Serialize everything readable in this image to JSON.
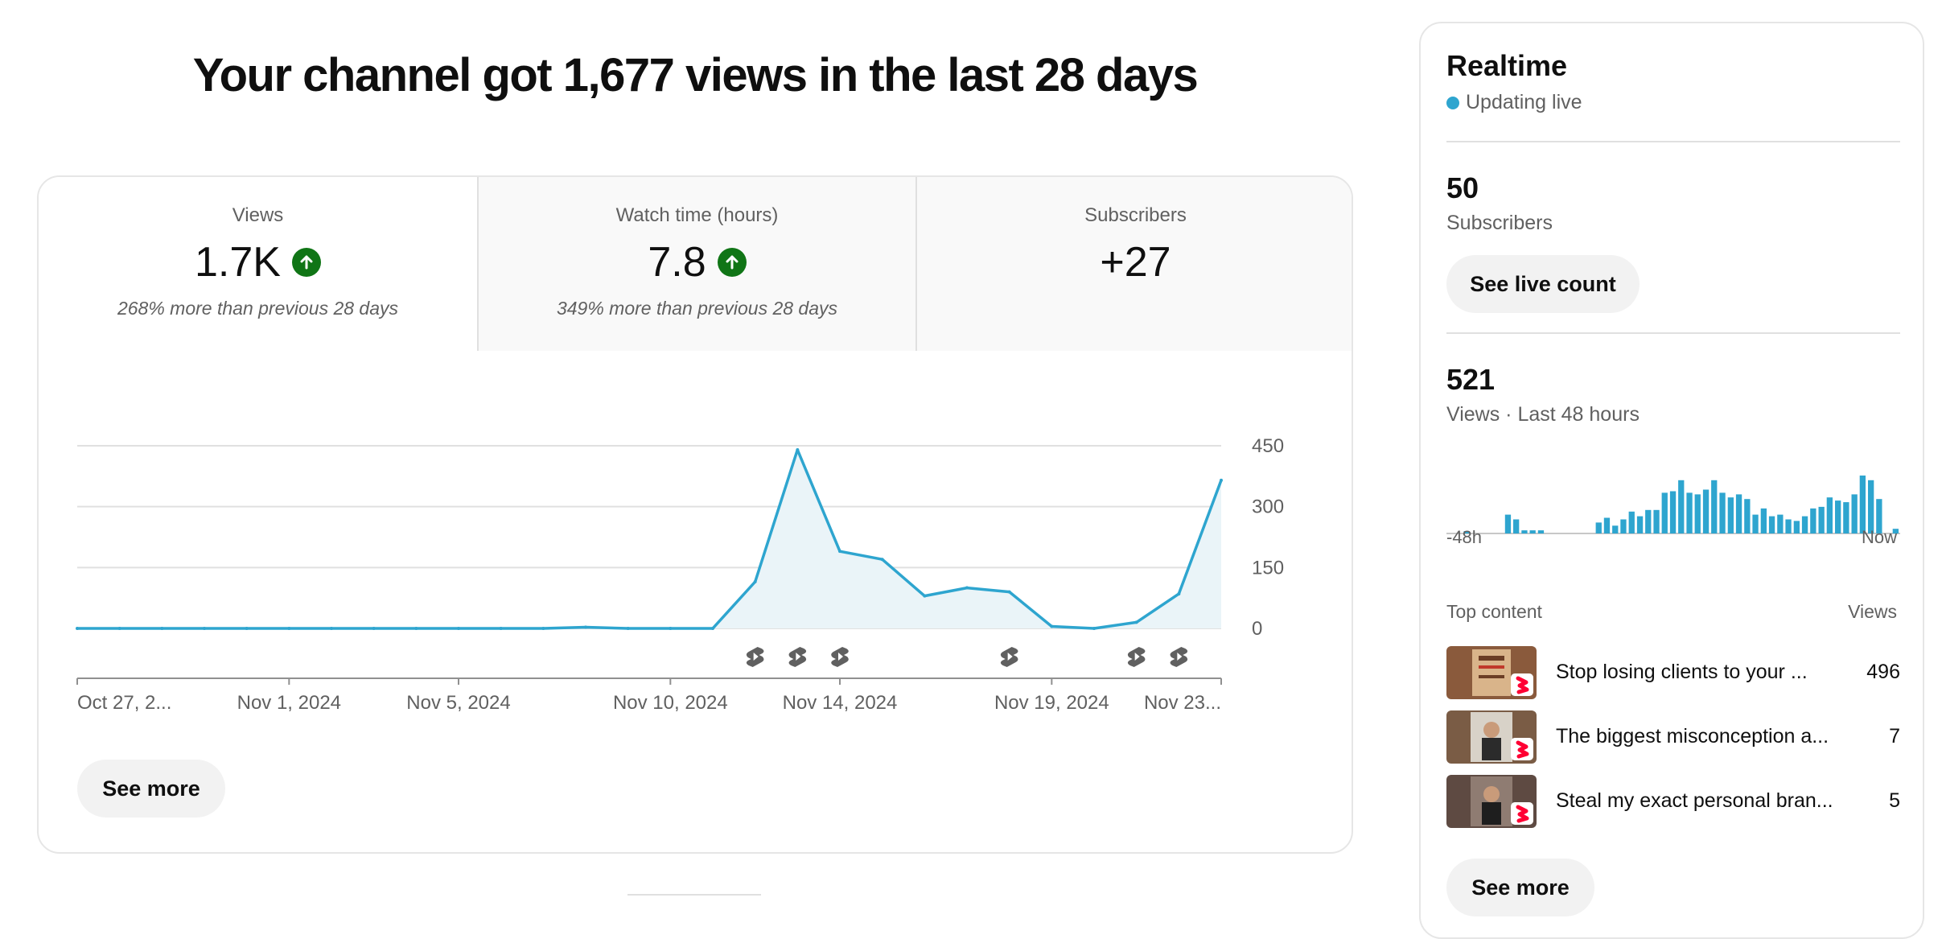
{
  "headline": "Your channel got 1,677 views in the last 28 days",
  "tabs": [
    {
      "label": "Views",
      "value": "1.7K",
      "trend": "up",
      "note": "268% more than previous 28 days"
    },
    {
      "label": "Watch time (hours)",
      "value": "7.8",
      "trend": "up",
      "note": "349% more than previous 28 days"
    },
    {
      "label": "Subscribers",
      "value": "+27",
      "note": ""
    }
  ],
  "chart_data": {
    "type": "area",
    "series": [
      {
        "values": [
          0,
          0,
          0,
          0,
          0,
          0,
          0,
          0,
          0,
          0,
          0,
          0,
          3,
          0,
          0,
          0,
          115,
          440,
          190,
          170,
          80,
          100,
          90,
          5,
          0,
          15,
          85,
          365
        ]
      }
    ],
    "x_tick_labels": [
      "Oct 27, 2...",
      "Nov 1, 2024",
      "Nov 5, 2024",
      "Nov 10, 2024",
      "Nov 14, 2024",
      "Nov 19, 2024",
      "Nov 23..."
    ],
    "x_tick_index": [
      0,
      5,
      9,
      14,
      18,
      23,
      27
    ],
    "y_ticks": [
      "450",
      "300",
      "150",
      "0"
    ],
    "ylim": [
      0,
      450
    ],
    "upload_markers_index": [
      16,
      17,
      18,
      22,
      25,
      26
    ],
    "color": "#2ea5cf",
    "grid": true
  },
  "see_more_label": "See more",
  "realtime": {
    "title": "Realtime",
    "status": "Updating live",
    "subscribers_value": "50",
    "subscribers_label": "Subscribers",
    "live_count_label": "See live count",
    "views_value": "521",
    "views_label": "Views · Last 48 hours",
    "mini_chart": {
      "type": "bar",
      "values": [
        0,
        0,
        1,
        0,
        0,
        0,
        0,
        12,
        9,
        2,
        2,
        2,
        0,
        0,
        0,
        0,
        0,
        0,
        7,
        10,
        5,
        9,
        14,
        11,
        15,
        15,
        26,
        27,
        34,
        26,
        25,
        28,
        34,
        26,
        23,
        25,
        22,
        12,
        16,
        11,
        12,
        9,
        8,
        11,
        16,
        17,
        23,
        21,
        20,
        25,
        37,
        34,
        22,
        0,
        3
      ],
      "color": "#2ea5cf",
      "x_labels": [
        "-48h",
        "Now"
      ]
    },
    "top_content_label": "Top content",
    "views_col_label": "Views",
    "items": [
      {
        "title": "Stop losing clients to your ...",
        "views": "496"
      },
      {
        "title": "The biggest misconception a...",
        "views": "7"
      },
      {
        "title": "Steal my exact personal bran...",
        "views": "5"
      }
    ],
    "see_more_label": "See more"
  }
}
